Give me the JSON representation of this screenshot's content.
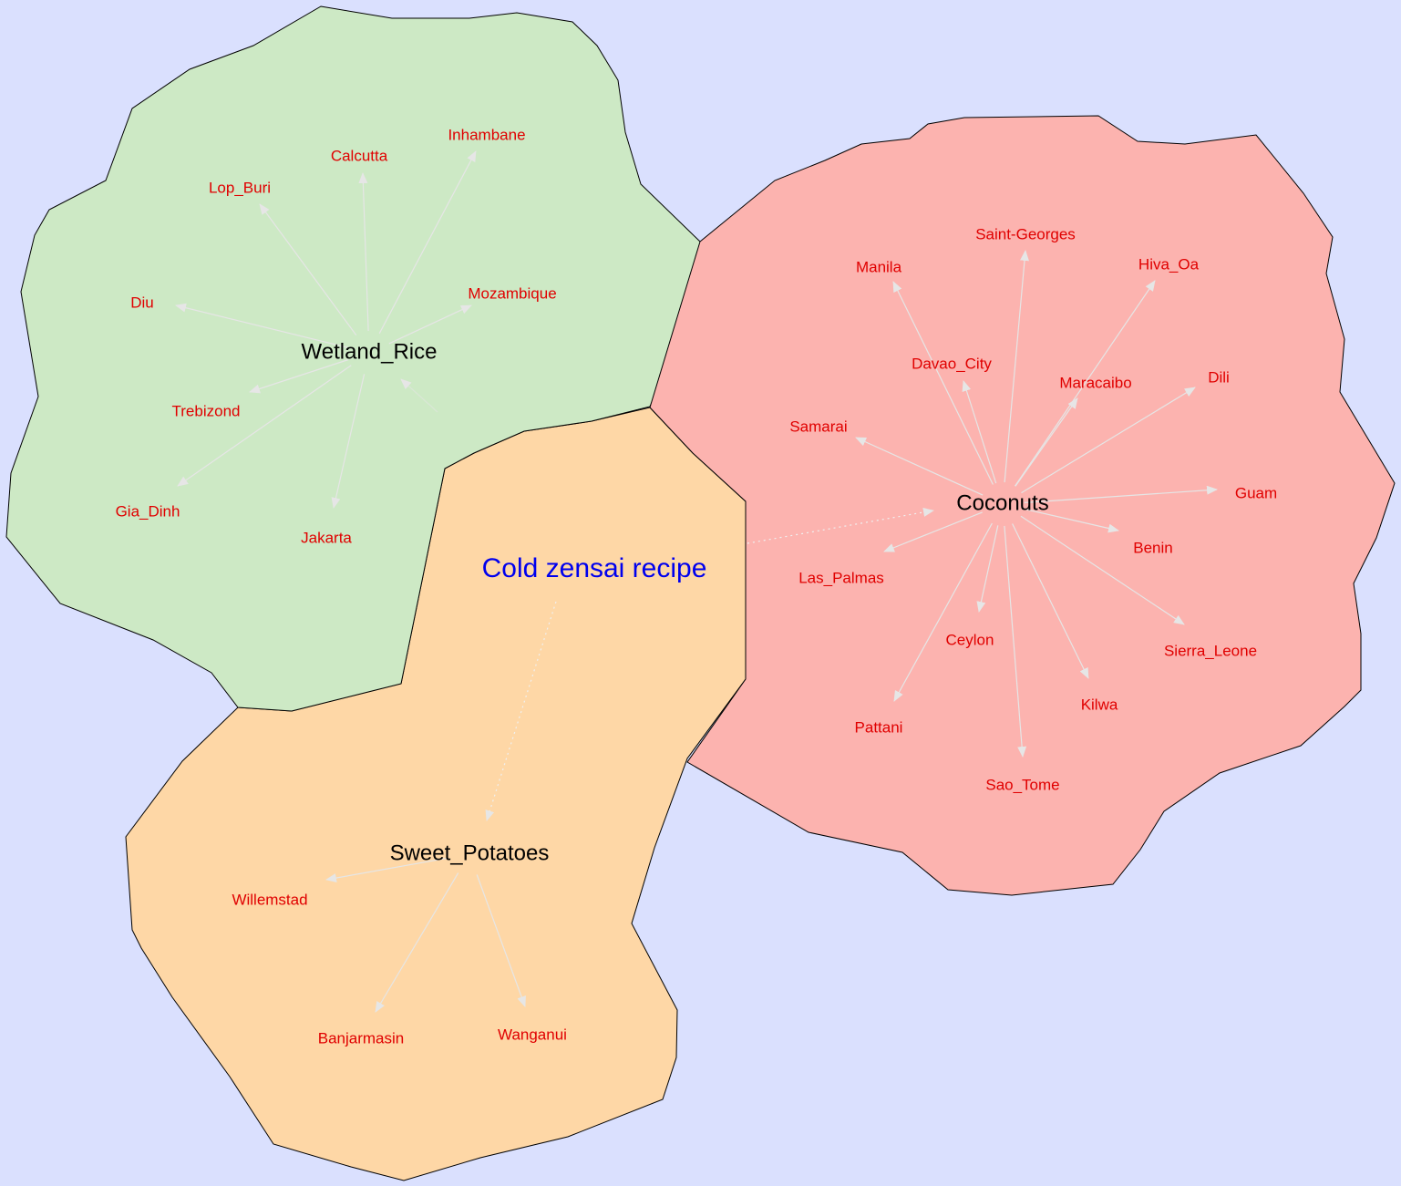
{
  "title": "Cold zensai recipe",
  "colors": {
    "background": "#dae0fe",
    "wetland_rice_region": "#cde9c5",
    "coconuts_region": "#fcb3af",
    "sweet_potatoes_region": "#fed7a6",
    "hub_text": "#000000",
    "leaf_text": "#e00000",
    "title_text": "#0000ee",
    "edge": "#e6e6e6"
  },
  "clusters": [
    {
      "id": "wetland-rice",
      "name": "Wetland_Rice",
      "leaves": [
        "Inhambane",
        "Calcutta",
        "Lop_Buri",
        "Diu",
        "Mozambique",
        "Trebizond",
        "Gia_Dinh",
        "Jakarta"
      ]
    },
    {
      "id": "coconuts",
      "name": "Coconuts",
      "leaves": [
        "Saint-Georges",
        "Manila",
        "Hiva_Oa",
        "Davao_City",
        "Maracaibo",
        "Dili",
        "Samarai",
        "Guam",
        "Benin",
        "Las_Palmas",
        "Ceylon",
        "Sierra_Leone",
        "Kilwa",
        "Pattani",
        "Sao_Tome"
      ]
    },
    {
      "id": "sweet-potatoes",
      "name": "Sweet_Potatoes",
      "leaves": [
        "Willemstad",
        "Banjarmasin",
        "Wanganui"
      ]
    }
  ]
}
